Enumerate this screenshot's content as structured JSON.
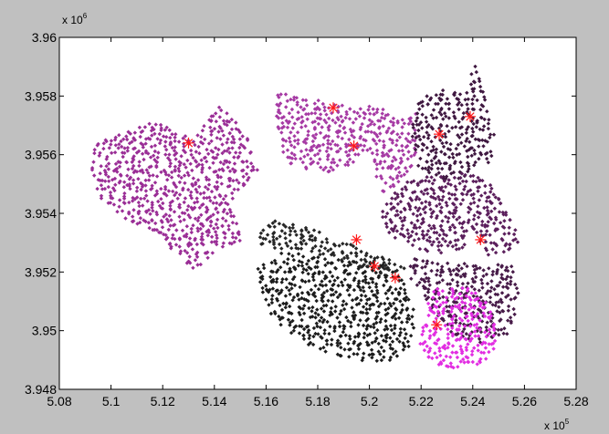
{
  "chart_data": {
    "type": "scatter",
    "title": "",
    "xlabel": "",
    "ylabel": "",
    "xlim": [
      508000,
      528000
    ],
    "ylim": [
      3948000,
      3960000
    ],
    "x_ticks": [
      508000,
      510000,
      512000,
      514000,
      516000,
      518000,
      520000,
      522000,
      524000,
      526000,
      528000
    ],
    "y_ticks": [
      3948000,
      3950000,
      3952000,
      3954000,
      3956000,
      3958000,
      3960000
    ],
    "x_tick_labels": [
      "5.08",
      "5.1",
      "5.12",
      "5.14",
      "5.16",
      "5.18",
      "5.2",
      "5.22",
      "5.24",
      "5.26",
      "5.28"
    ],
    "y_tick_labels": [
      "3.948",
      "3.95",
      "3.952",
      "3.954",
      "3.956",
      "3.958",
      "3.96"
    ],
    "x_multiplier": {
      "base": "x 10",
      "exp": "5"
    },
    "y_multiplier": {
      "base": "x 10",
      "exp": "6"
    },
    "grid": false,
    "clusters": [
      {
        "color": "#9a2e96",
        "polys": [
          [
            [
              509400,
              3956500
            ],
            [
              510400,
              3956700
            ],
            [
              511800,
              3957200
            ],
            [
              512600,
              3956800
            ],
            [
              513200,
              3956500
            ],
            [
              514200,
              3957700
            ],
            [
              515200,
              3956800
            ],
            [
              515800,
              3955600
            ],
            [
              514600,
              3954400
            ],
            [
              515100,
              3953100
            ],
            [
              514200,
              3952800
            ],
            [
              513300,
              3952000
            ],
            [
              512600,
              3952500
            ],
            [
              511700,
              3953300
            ],
            [
              510600,
              3953800
            ],
            [
              509600,
              3954500
            ],
            [
              509200,
              3955500
            ]
          ]
        ]
      },
      {
        "color": "#a63aa4",
        "polys": [
          [
            [
              516400,
              3958100
            ],
            [
              518200,
              3957900
            ],
            [
              519300,
              3957600
            ],
            [
              520600,
              3957700
            ],
            [
              521200,
              3957200
            ],
            [
              521800,
              3957400
            ],
            [
              521900,
              3956500
            ],
            [
              521700,
              3955700
            ],
            [
              521100,
              3955000
            ],
            [
              520400,
              3954600
            ],
            [
              520100,
              3955500
            ],
            [
              519800,
              3956000
            ],
            [
              519100,
              3955500
            ],
            [
              518600,
              3955400
            ],
            [
              517600,
              3955500
            ],
            [
              516800,
              3955700
            ],
            [
              516400,
              3956800
            ]
          ]
        ]
      },
      {
        "color": "#3f1840",
        "polys": [
          [
            [
              521900,
              3957900
            ],
            [
              522800,
              3958200
            ],
            [
              523700,
              3958100
            ],
            [
              524100,
              3959200
            ],
            [
              524400,
              3958200
            ],
            [
              524700,
              3957400
            ],
            [
              525000,
              3956400
            ],
            [
              524600,
              3955700
            ],
            [
              523900,
              3955400
            ],
            [
              523500,
              3955100
            ],
            [
              522500,
              3955200
            ],
            [
              521900,
              3955600
            ],
            [
              521600,
              3956800
            ]
          ]
        ]
      },
      {
        "color": "#5b1f5c",
        "polys": [
          [
            [
              521200,
              3955000
            ],
            [
              522400,
              3955300
            ],
            [
              523200,
              3955200
            ],
            [
              523900,
              3955500
            ],
            [
              524600,
              3955100
            ],
            [
              525200,
              3954200
            ],
            [
              525900,
              3953100
            ],
            [
              525300,
              3952700
            ],
            [
              524600,
              3952500
            ],
            [
              524000,
              3953500
            ],
            [
              523600,
              3952700
            ],
            [
              522700,
              3952600
            ],
            [
              521700,
              3952800
            ],
            [
              520800,
              3953200
            ],
            [
              520400,
              3954100
            ]
          ]
        ]
      },
      {
        "color": "#471b48",
        "polys": [
          [
            [
              521600,
              3952600
            ],
            [
              522800,
              3952300
            ],
            [
              523900,
              3952300
            ],
            [
              524800,
              3952300
            ],
            [
              525600,
              3952200
            ],
            [
              525800,
              3951100
            ],
            [
              525400,
              3949900
            ],
            [
              524300,
              3949600
            ],
            [
              523300,
              3949800
            ],
            [
              522600,
              3950500
            ],
            [
              522100,
              3951200
            ],
            [
              521500,
              3951800
            ]
          ]
        ]
      },
      {
        "color": "#1c1c1c",
        "polys": [
          [
            [
              515600,
              3952100
            ],
            [
              516700,
              3952700
            ],
            [
              518400,
              3952500
            ],
            [
              519800,
              3952400
            ],
            [
              520700,
              3952200
            ],
            [
              521400,
              3951700
            ],
            [
              521800,
              3950500
            ],
            [
              521600,
              3949500
            ],
            [
              520800,
              3948900
            ],
            [
              519500,
              3949000
            ],
            [
              518200,
              3949300
            ],
            [
              517200,
              3949700
            ],
            [
              516300,
              3950400
            ],
            [
              515800,
              3951200
            ]
          ]
        ]
      },
      {
        "color": "#262626",
        "polys": [
          [
            [
              515700,
              3953300
            ],
            [
              516300,
              3953800
            ],
            [
              517500,
              3953600
            ],
            [
              518700,
              3953100
            ],
            [
              519800,
              3952800
            ],
            [
              520800,
              3952400
            ],
            [
              521500,
              3952100
            ],
            [
              520500,
              3951900
            ],
            [
              519200,
              3952300
            ],
            [
              517900,
              3952600
            ],
            [
              516700,
              3952800
            ],
            [
              515900,
              3952700
            ]
          ]
        ]
      },
      {
        "color": "#e22ee2",
        "polys": [
          [
            [
              522600,
              3951500
            ],
            [
              523500,
              3951500
            ],
            [
              524300,
              3951400
            ],
            [
              524800,
              3950500
            ],
            [
              525000,
              3949300
            ],
            [
              524300,
              3948800
            ],
            [
              523200,
              3948700
            ],
            [
              522200,
              3948900
            ],
            [
              521900,
              3949700
            ],
            [
              522100,
              3950700
            ]
          ]
        ]
      }
    ],
    "centroids": [
      {
        "x": 513000,
        "y": 3956400
      },
      {
        "x": 518600,
        "y": 3957600
      },
      {
        "x": 519400,
        "y": 3956300
      },
      {
        "x": 522700,
        "y": 3956700
      },
      {
        "x": 523900,
        "y": 3957300
      },
      {
        "x": 519500,
        "y": 3953100
      },
      {
        "x": 524300,
        "y": 3953100
      },
      {
        "x": 520200,
        "y": 3952200
      },
      {
        "x": 521000,
        "y": 3951800
      },
      {
        "x": 522600,
        "y": 3950200
      }
    ],
    "centroid_color": "#ff1a1a"
  }
}
